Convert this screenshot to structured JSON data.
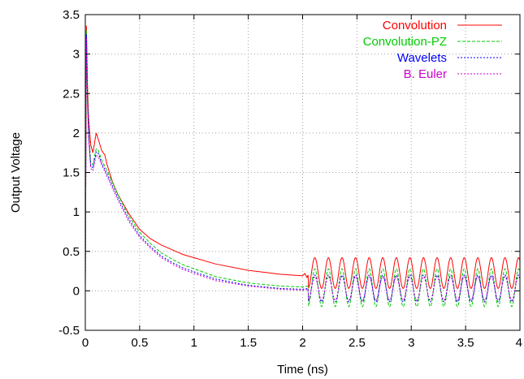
{
  "chart_data": {
    "type": "line",
    "title": "",
    "xlabel": "Time (ns)",
    "ylabel": "Output Voltage",
    "xlim": [
      0,
      4
    ],
    "ylim": [
      -0.5,
      3.5
    ],
    "xticks": [
      "0",
      "0.5",
      "1",
      "1.5",
      "2",
      "2.5",
      "3",
      "3.5",
      "4"
    ],
    "yticks": [
      "-0.5",
      "0",
      "0.5",
      "1",
      "1.5",
      "2",
      "2.5",
      "3",
      "3.5"
    ],
    "grid": true,
    "legend_position": "top-right",
    "series": [
      {
        "name": "Convolution",
        "color": "#ff0000",
        "dash": "solid",
        "x": [
          0,
          0.01,
          0.02,
          0.03,
          0.05,
          0.07,
          0.1,
          0.12,
          0.15,
          0.18,
          0.2,
          0.25,
          0.3,
          0.4,
          0.5,
          0.55,
          0.6,
          0.7,
          0.8,
          0.9,
          1.0,
          1.2,
          1.5,
          1.8,
          2.0,
          2.02,
          2.04,
          2.05
        ],
        "y": [
          0,
          3.36,
          2.6,
          2.2,
          1.85,
          1.75,
          2.0,
          1.92,
          1.78,
          1.72,
          1.6,
          1.38,
          1.22,
          0.98,
          0.78,
          0.72,
          0.66,
          0.58,
          0.52,
          0.46,
          0.42,
          0.34,
          0.26,
          0.21,
          0.19,
          0.22,
          0.17,
          0.2
        ],
        "oscillation": {
          "start": 2.05,
          "end": 4.0,
          "period": 0.125,
          "min": 0.03,
          "max": 0.42
        }
      },
      {
        "name": "Convolution-PZ",
        "color": "#00cc00",
        "dash": "dashed",
        "x": [
          0,
          0.01,
          0.02,
          0.03,
          0.05,
          0.07,
          0.1,
          0.12,
          0.15,
          0.2,
          0.3,
          0.4,
          0.5,
          0.6,
          0.7,
          0.8,
          0.9,
          1.0,
          1.2,
          1.5,
          1.8,
          2.0,
          2.05
        ],
        "y": [
          0,
          3.3,
          2.5,
          2.05,
          1.62,
          1.6,
          1.8,
          1.78,
          1.66,
          1.52,
          1.22,
          0.95,
          0.74,
          0.6,
          0.48,
          0.4,
          0.33,
          0.28,
          0.18,
          0.1,
          0.06,
          0.05,
          0.06
        ],
        "oscillation": {
          "start": 2.05,
          "end": 4.0,
          "period": 0.125,
          "min": -0.2,
          "max": 0.28
        }
      },
      {
        "name": "Wavelets",
        "color": "#0000ff",
        "dash": "dotted",
        "x": [
          0,
          0.01,
          0.02,
          0.03,
          0.05,
          0.07,
          0.1,
          0.12,
          0.15,
          0.2,
          0.3,
          0.4,
          0.5,
          0.6,
          0.7,
          0.8,
          0.9,
          1.0,
          1.2,
          1.5,
          1.8,
          2.0,
          2.05
        ],
        "y": [
          0,
          3.25,
          2.45,
          2.0,
          1.58,
          1.56,
          1.76,
          1.74,
          1.62,
          1.48,
          1.18,
          0.91,
          0.7,
          0.56,
          0.44,
          0.36,
          0.29,
          0.24,
          0.15,
          0.07,
          0.03,
          0.02,
          0.03
        ],
        "oscillation": {
          "start": 2.05,
          "end": 4.0,
          "period": 0.125,
          "min": -0.14,
          "max": 0.2
        }
      },
      {
        "name": "B. Euler",
        "color": "#cc00cc",
        "dash": "dotted",
        "x": [
          0,
          0.01,
          0.02,
          0.03,
          0.05,
          0.07,
          0.1,
          0.12,
          0.15,
          0.2,
          0.3,
          0.4,
          0.5,
          0.6,
          0.7,
          0.8,
          0.9,
          1.0,
          1.2,
          1.5,
          1.8,
          2.0,
          2.05
        ],
        "y": [
          0,
          3.2,
          2.4,
          1.95,
          1.55,
          1.52,
          1.72,
          1.7,
          1.6,
          1.45,
          1.15,
          0.88,
          0.68,
          0.54,
          0.42,
          0.34,
          0.27,
          0.22,
          0.13,
          0.06,
          0.02,
          0.01,
          0.02
        ],
        "oscillation": {
          "start": 2.05,
          "end": 4.0,
          "period": 0.125,
          "min": -0.12,
          "max": 0.18
        }
      }
    ]
  }
}
